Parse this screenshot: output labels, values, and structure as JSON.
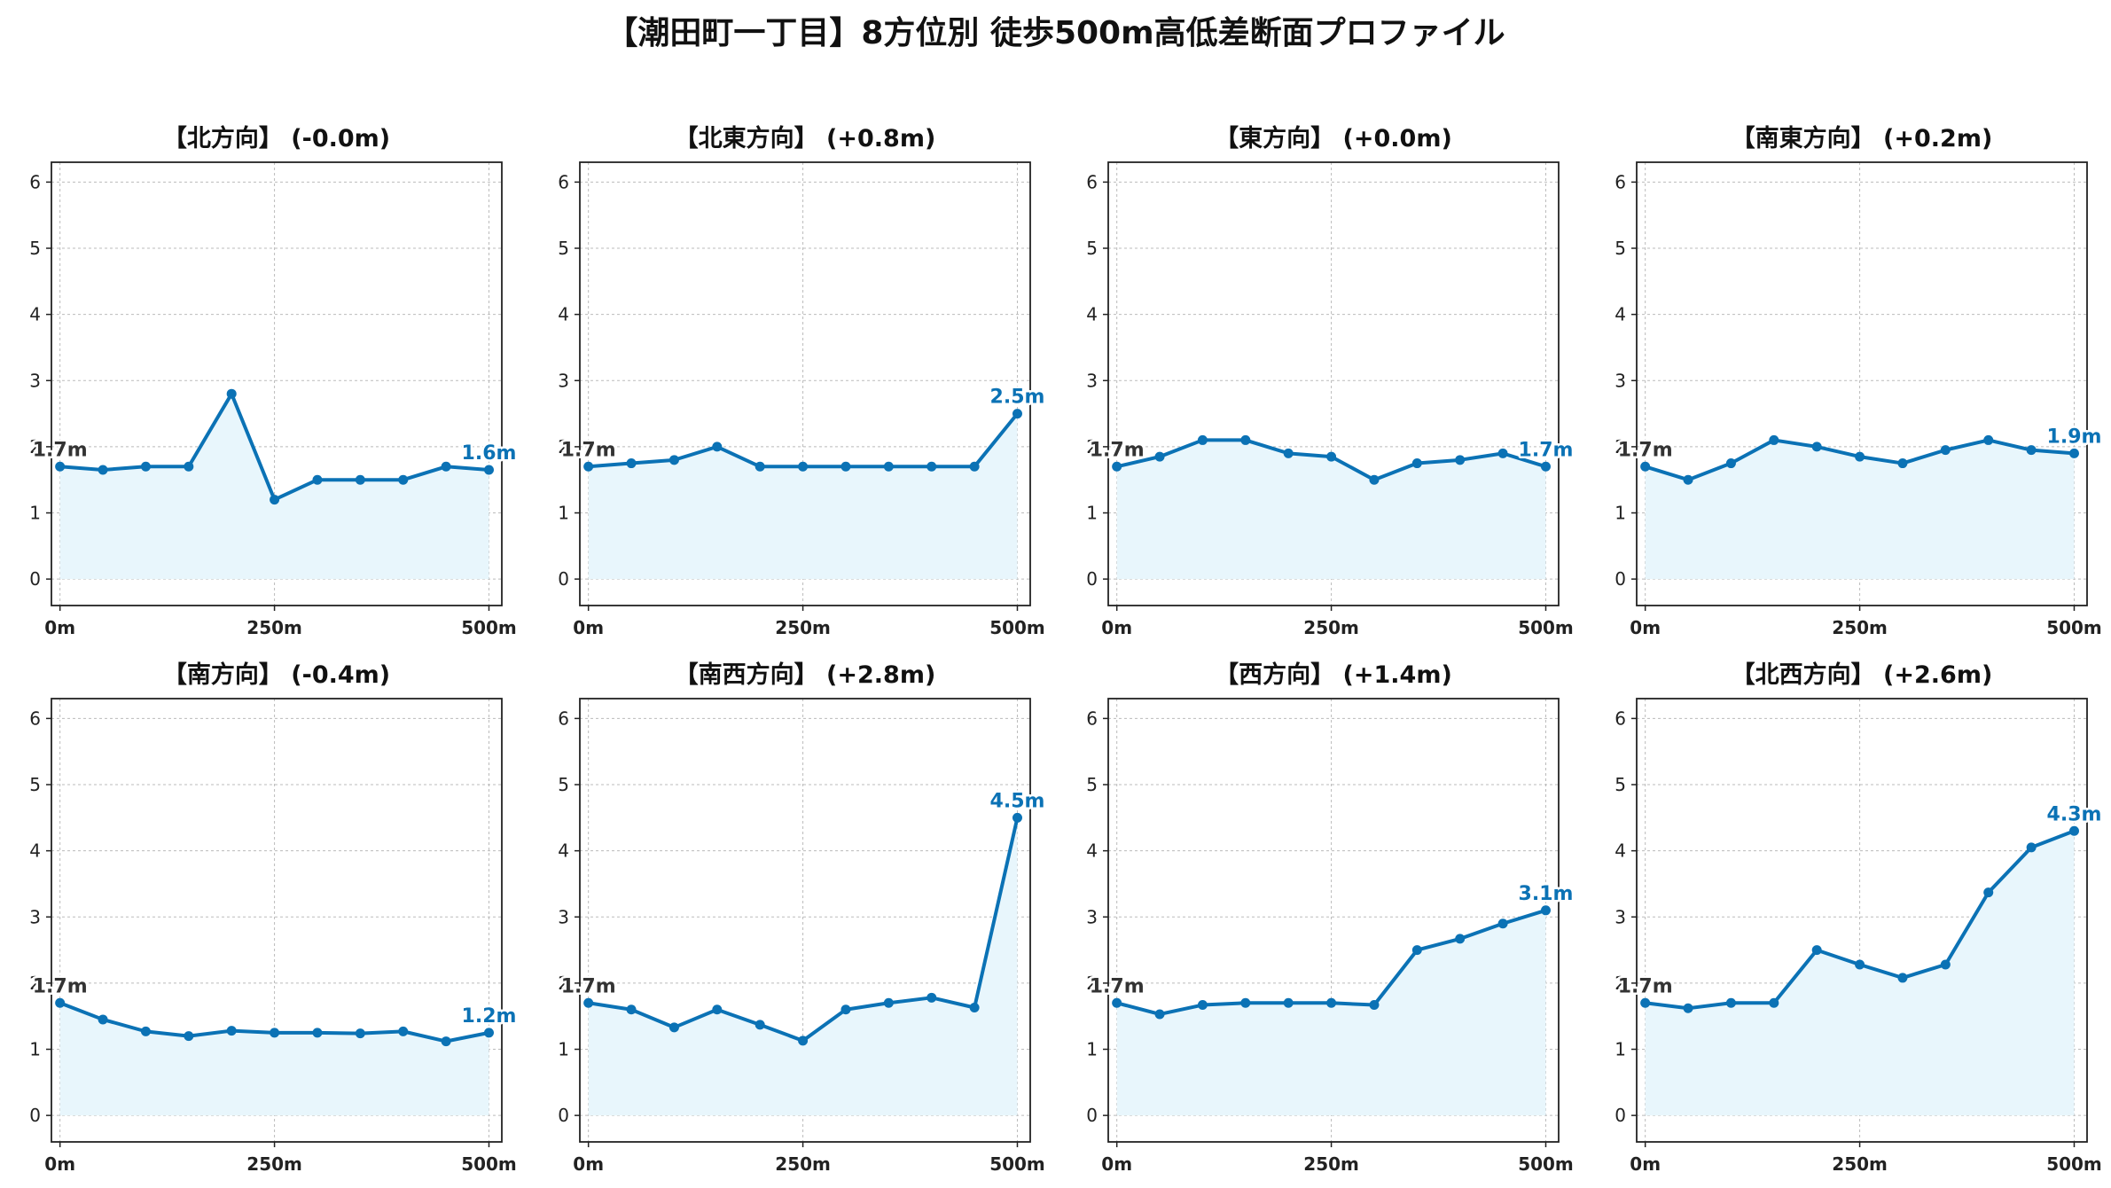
{
  "title": "【潮田町一丁目】8方位別 徒歩500m高低差断面プロファイル",
  "colors": {
    "line": "#0b72b5",
    "fill": "#e8f6fc",
    "grid": "#bbbbbb",
    "start_label": "#333333",
    "end_label": "#0b72b5"
  },
  "chart_data": [
    {
      "type": "area",
      "title": "【北方向】 (-0.0m)",
      "x": [
        0,
        50,
        100,
        150,
        200,
        250,
        300,
        350,
        400,
        450,
        500
      ],
      "values": [
        1.7,
        1.65,
        1.7,
        1.7,
        2.8,
        1.2,
        1.5,
        1.5,
        1.5,
        1.7,
        1.65
      ],
      "start_label": "1.7m",
      "end_label": "1.6m",
      "xticks": [
        "0m",
        "250m",
        "500m"
      ],
      "yticks": [
        0,
        1,
        2,
        3,
        4,
        5,
        6
      ],
      "ylim": [
        -0.4,
        6.3
      ],
      "xlim": [
        -10,
        515
      ],
      "grid": true
    },
    {
      "type": "area",
      "title": "【北東方向】 (+0.8m)",
      "x": [
        0,
        50,
        100,
        150,
        200,
        250,
        300,
        350,
        400,
        450,
        500
      ],
      "values": [
        1.7,
        1.75,
        1.8,
        2.0,
        1.7,
        1.7,
        1.7,
        1.7,
        1.7,
        1.7,
        2.5
      ],
      "start_label": "1.7m",
      "end_label": "2.5m",
      "xticks": [
        "0m",
        "250m",
        "500m"
      ],
      "yticks": [
        0,
        1,
        2,
        3,
        4,
        5,
        6
      ],
      "ylim": [
        -0.4,
        6.3
      ],
      "xlim": [
        -10,
        515
      ],
      "grid": true
    },
    {
      "type": "area",
      "title": "【東方向】 (+0.0m)",
      "x": [
        0,
        50,
        100,
        150,
        200,
        250,
        300,
        350,
        400,
        450,
        500
      ],
      "values": [
        1.7,
        1.85,
        2.1,
        2.1,
        1.9,
        1.85,
        1.5,
        1.75,
        1.8,
        1.9,
        1.7
      ],
      "start_label": "1.7m",
      "end_label": "1.7m",
      "xticks": [
        "0m",
        "250m",
        "500m"
      ],
      "yticks": [
        0,
        1,
        2,
        3,
        4,
        5,
        6
      ],
      "ylim": [
        -0.4,
        6.3
      ],
      "xlim": [
        -10,
        515
      ],
      "grid": true
    },
    {
      "type": "area",
      "title": "【南東方向】 (+0.2m)",
      "x": [
        0,
        50,
        100,
        150,
        200,
        250,
        300,
        350,
        400,
        450,
        500
      ],
      "values": [
        1.7,
        1.5,
        1.75,
        2.1,
        2.0,
        1.85,
        1.75,
        1.95,
        2.1,
        1.95,
        1.9
      ],
      "start_label": "1.7m",
      "end_label": "1.9m",
      "xticks": [
        "0m",
        "250m",
        "500m"
      ],
      "yticks": [
        0,
        1,
        2,
        3,
        4,
        5,
        6
      ],
      "ylim": [
        -0.4,
        6.3
      ],
      "xlim": [
        -10,
        515
      ],
      "grid": true
    },
    {
      "type": "area",
      "title": "【南方向】 (-0.4m)",
      "x": [
        0,
        50,
        100,
        150,
        200,
        250,
        300,
        350,
        400,
        450,
        500
      ],
      "values": [
        1.7,
        1.45,
        1.27,
        1.2,
        1.28,
        1.25,
        1.25,
        1.24,
        1.27,
        1.12,
        1.25
      ],
      "start_label": "1.7m",
      "end_label": "1.2m",
      "xticks": [
        "0m",
        "250m",
        "500m"
      ],
      "yticks": [
        0,
        1,
        2,
        3,
        4,
        5,
        6
      ],
      "ylim": [
        -0.4,
        6.3
      ],
      "xlim": [
        -10,
        515
      ],
      "grid": true
    },
    {
      "type": "area",
      "title": "【南西方向】 (+2.8m)",
      "x": [
        0,
        50,
        100,
        150,
        200,
        250,
        300,
        350,
        400,
        450,
        500
      ],
      "values": [
        1.7,
        1.6,
        1.33,
        1.6,
        1.37,
        1.13,
        1.6,
        1.7,
        1.78,
        1.63,
        4.5
      ],
      "start_label": "1.7m",
      "end_label": "4.5m",
      "xticks": [
        "0m",
        "250m",
        "500m"
      ],
      "yticks": [
        0,
        1,
        2,
        3,
        4,
        5,
        6
      ],
      "ylim": [
        -0.4,
        6.3
      ],
      "xlim": [
        -10,
        515
      ],
      "grid": true
    },
    {
      "type": "area",
      "title": "【西方向】 (+1.4m)",
      "x": [
        0,
        50,
        100,
        150,
        200,
        250,
        300,
        350,
        400,
        450,
        500
      ],
      "values": [
        1.7,
        1.53,
        1.67,
        1.7,
        1.7,
        1.7,
        1.67,
        2.5,
        2.67,
        2.9,
        3.1
      ],
      "start_label": "1.7m",
      "end_label": "3.1m",
      "xticks": [
        "0m",
        "250m",
        "500m"
      ],
      "yticks": [
        0,
        1,
        2,
        3,
        4,
        5,
        6
      ],
      "ylim": [
        -0.4,
        6.3
      ],
      "xlim": [
        -10,
        515
      ],
      "grid": true
    },
    {
      "type": "area",
      "title": "【北西方向】 (+2.6m)",
      "x": [
        0,
        50,
        100,
        150,
        200,
        250,
        300,
        350,
        400,
        450,
        500
      ],
      "values": [
        1.7,
        1.62,
        1.7,
        1.7,
        2.5,
        2.28,
        2.08,
        2.28,
        3.37,
        4.05,
        4.3
      ],
      "start_label": "1.7m",
      "end_label": "4.3m",
      "xticks": [
        "0m",
        "250m",
        "500m"
      ],
      "yticks": [
        0,
        1,
        2,
        3,
        4,
        5,
        6
      ],
      "ylim": [
        -0.4,
        6.3
      ],
      "xlim": [
        -10,
        515
      ],
      "grid": true
    }
  ]
}
